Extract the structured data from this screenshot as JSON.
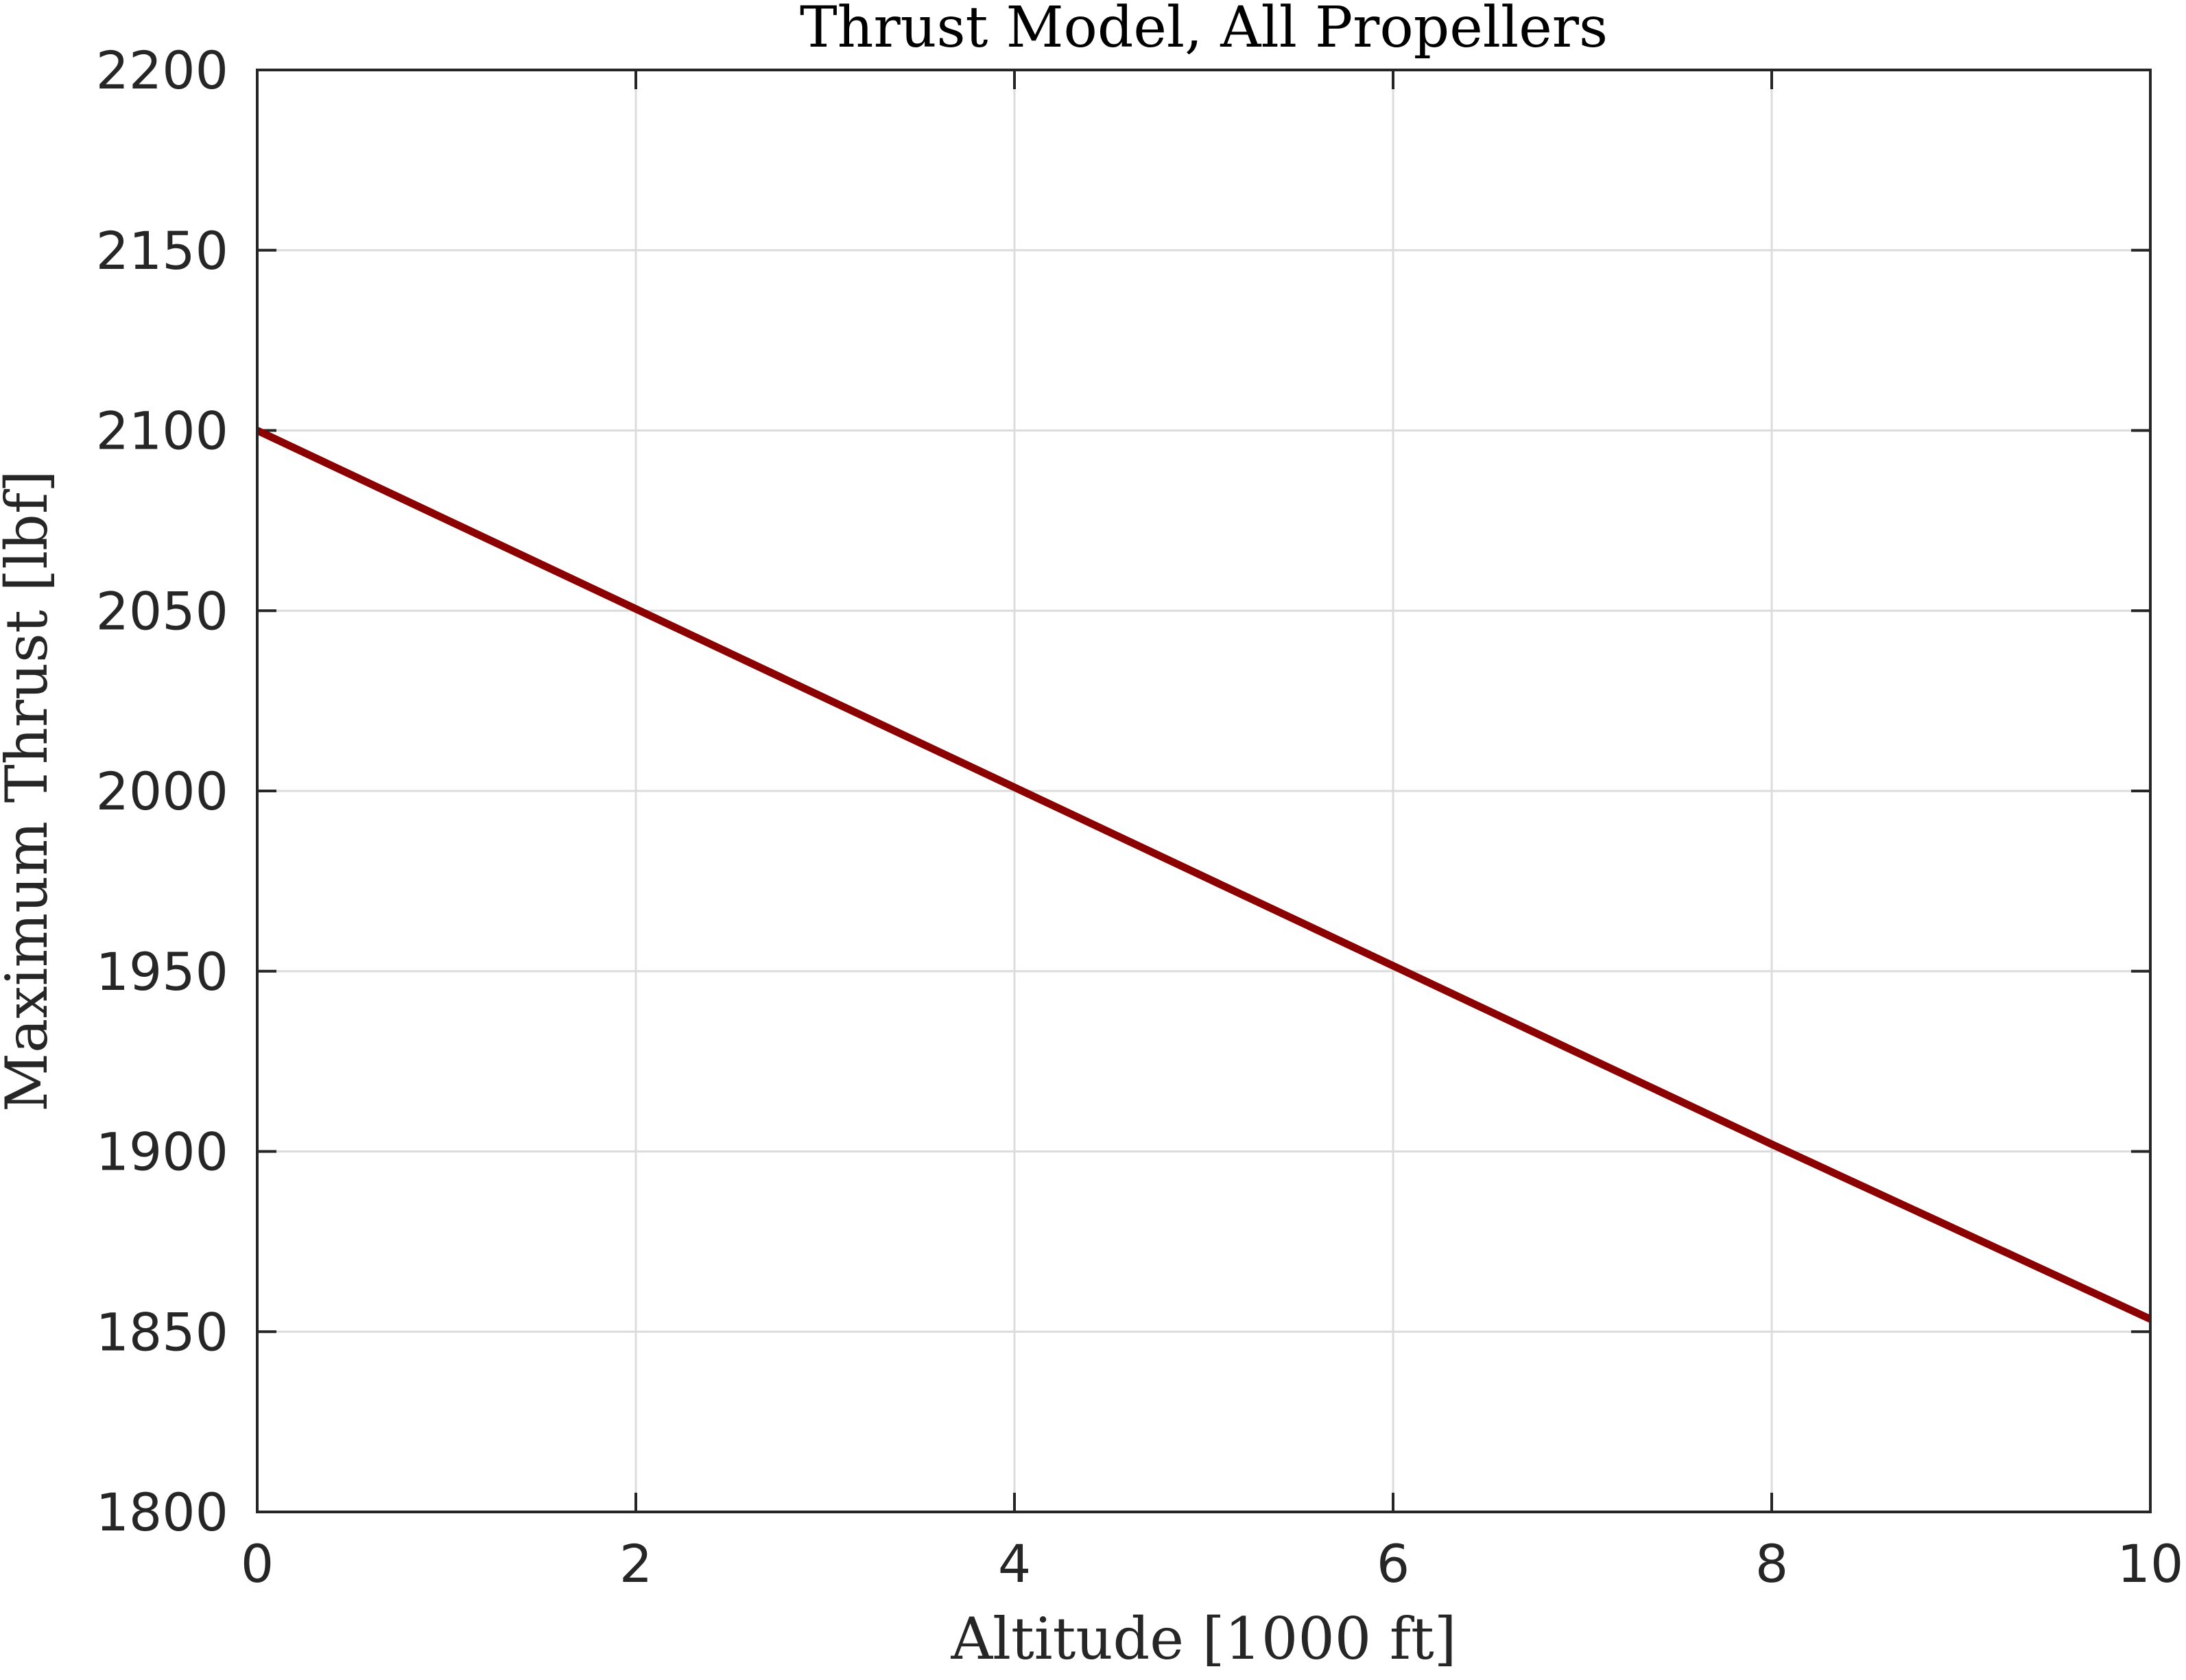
{
  "chart_data": {
    "type": "line",
    "title": "Thrust Model, All Propellers",
    "xlabel": "Altitude [1000 ft]",
    "ylabel": "Maximum Thrust [lbf]",
    "xlim": [
      0,
      10
    ],
    "ylim": [
      1800,
      2200
    ],
    "xticks": [
      "0",
      "2",
      "4",
      "6",
      "8",
      "10"
    ],
    "yticks": [
      "1800",
      "1850",
      "1900",
      "1950",
      "2000",
      "2050",
      "2100",
      "2150",
      "2200"
    ],
    "grid": true,
    "legend": "none",
    "series": [
      {
        "color": "#8b0000",
        "x": [
          0,
          2,
          4,
          6,
          8,
          10
        ],
        "y": [
          2100,
          2050.5,
          2001,
          1951.5,
          1902,
          1853.5
        ]
      }
    ]
  }
}
